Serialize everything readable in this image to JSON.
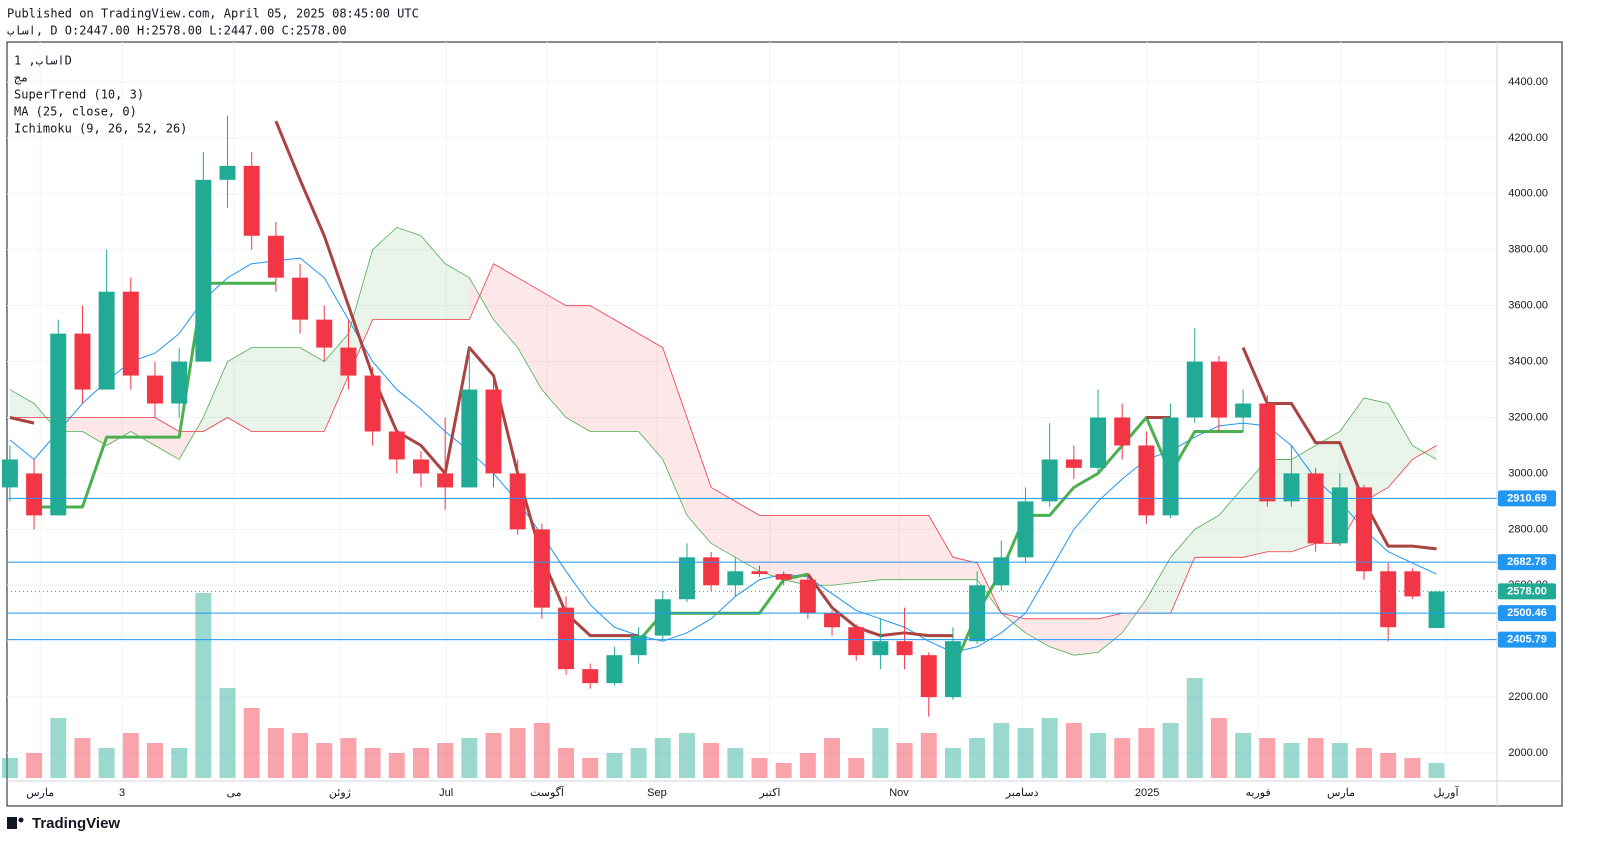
{
  "header": {
    "published": "Published on TradingView.com, April 05, 2025 08:45:00 UTC",
    "ohlc": "اساب, D O:2447.00 H:2578.00 L:2447.00 C:2578.00"
  },
  "legend": {
    "symbol": "اساب, 1D",
    "volume": "مج",
    "supertrend": "SuperTrend (10, 3)",
    "ma": "MA (25, close, 0)",
    "ichimoku": "Ichimoku (9, 26, 52, 26)"
  },
  "footer": {
    "brand": "TradingView"
  },
  "chart_data": {
    "type": "candlestick",
    "up_color": "#22ab94",
    "down_color": "#f23645",
    "open": [
      2950,
      3000,
      2850,
      3500,
      3300,
      3650,
      3350,
      3250,
      3400,
      4050,
      4100,
      3850,
      3700,
      3550,
      3450,
      3350,
      3150,
      3050,
      3000,
      2950,
      3300,
      3000,
      2800,
      2520,
      2300,
      2250,
      2350,
      2420,
      2550,
      2700,
      2600,
      2650,
      2640,
      2620,
      2500,
      2450,
      2350,
      2400,
      2350,
      2200,
      2400,
      2600,
      2700,
      2900,
      3050,
      3020,
      3200,
      3100,
      2850,
      3200,
      3400,
      3200,
      3250,
      2900,
      3000,
      2750,
      2950,
      2650,
      2650,
      2447
    ],
    "high": [
      3100,
      3050,
      3550,
      3600,
      3800,
      3700,
      3400,
      3450,
      4150,
      4280,
      4150,
      3900,
      3750,
      3600,
      3550,
      3380,
      3160,
      3080,
      3200,
      3450,
      3350,
      3050,
      2820,
      2560,
      2320,
      2380,
      2450,
      2580,
      2750,
      2720,
      2700,
      2670,
      2650,
      2640,
      2510,
      2460,
      2480,
      2520,
      2360,
      2450,
      2650,
      2760,
      2950,
      3180,
      3100,
      3300,
      3250,
      3150,
      3250,
      3520,
      3420,
      3300,
      3280,
      3100,
      3020,
      3000,
      2960,
      2680,
      2660,
      2578
    ],
    "low": [
      2900,
      2800,
      2850,
      3250,
      3300,
      3300,
      3200,
      3200,
      3400,
      3950,
      3800,
      3650,
      3500,
      3400,
      3300,
      3100,
      3000,
      2950,
      2870,
      2950,
      2950,
      2780,
      2480,
      2280,
      2230,
      2240,
      2320,
      2400,
      2540,
      2580,
      2560,
      2630,
      2600,
      2480,
      2420,
      2330,
      2300,
      2300,
      2130,
      2190,
      2390,
      2580,
      2680,
      2880,
      2980,
      3000,
      3050,
      2820,
      2840,
      3180,
      3150,
      3150,
      2880,
      2880,
      2720,
      2740,
      2620,
      2400,
      2550,
      2447
    ],
    "close": [
      3050,
      2850,
      3500,
      3300,
      3650,
      3350,
      3250,
      3400,
      4050,
      4100,
      3850,
      3700,
      3550,
      3450,
      3350,
      3150,
      3050,
      3000,
      2950,
      3300,
      3000,
      2800,
      2520,
      2300,
      2250,
      2350,
      2420,
      2550,
      2700,
      2600,
      2650,
      2640,
      2620,
      2500,
      2450,
      2350,
      2400,
      2350,
      2200,
      2400,
      2600,
      2700,
      2900,
      3050,
      3020,
      3200,
      3100,
      2850,
      3200,
      3400,
      3200,
      3250,
      2900,
      3000,
      2750,
      2950,
      2650,
      2450,
      2560,
      2578
    ],
    "volume": [
      20,
      25,
      60,
      40,
      30,
      45,
      35,
      30,
      185,
      90,
      70,
      50,
      45,
      35,
      40,
      30,
      25,
      30,
      35,
      40,
      45,
      50,
      55,
      30,
      20,
      25,
      30,
      40,
      45,
      35,
      30,
      20,
      15,
      25,
      40,
      20,
      50,
      35,
      45,
      30,
      40,
      55,
      50,
      60,
      55,
      45,
      40,
      50,
      55,
      100,
      60,
      45,
      40,
      35,
      40,
      35,
      30,
      25,
      20,
      15
    ],
    "ma": {
      "color": "#2196f3",
      "values": [
        3120,
        3050,
        3150,
        3250,
        3330,
        3400,
        3430,
        3500,
        3620,
        3700,
        3750,
        3760,
        3770,
        3700,
        3550,
        3400,
        3300,
        3230,
        3150,
        3080,
        3000,
        2900,
        2780,
        2650,
        2530,
        2450,
        2420,
        2400,
        2430,
        2480,
        2560,
        2620,
        2640,
        2630,
        2570,
        2510,
        2480,
        2450,
        2400,
        2360,
        2380,
        2430,
        2500,
        2650,
        2800,
        2900,
        2980,
        3050,
        3080,
        3130,
        3170,
        3180,
        3170,
        3100,
        2980,
        2900,
        2800,
        2720,
        2680,
        2640
      ]
    },
    "supertrend": {
      "up_color": "#4caf50",
      "down_color": "#a94442",
      "up": [
        null,
        2880,
        2880,
        2880,
        3130,
        3130,
        3130,
        3130,
        3680,
        3680,
        3680,
        3680,
        null,
        null,
        null,
        null,
        null,
        null,
        null,
        null,
        null,
        null,
        null,
        null,
        null,
        null,
        2400,
        2500,
        2500,
        2500,
        2500,
        2500,
        2620,
        2640,
        null,
        null,
        null,
        null,
        null,
        2300,
        2500,
        2650,
        2850,
        2850,
        2950,
        3000,
        3100,
        3200,
        3000,
        3150,
        3150,
        3150,
        null,
        null,
        null,
        null,
        null,
        null,
        null,
        null
      ],
      "down": [
        3200,
        3180,
        null,
        null,
        null,
        null,
        null,
        null,
        null,
        null,
        null,
        4260,
        4050,
        3850,
        3600,
        3350,
        3150,
        3100,
        3000,
        3450,
        3350,
        3000,
        2700,
        2500,
        2420,
        2420,
        2420,
        null,
        null,
        null,
        null,
        null,
        null,
        2640,
        2520,
        2450,
        2420,
        2430,
        2420,
        2420,
        null,
        null,
        null,
        null,
        null,
        null,
        null,
        3200,
        3200,
        null,
        null,
        3450,
        3250,
        3250,
        3110,
        3110,
        2900,
        2740,
        2740,
        2730
      ]
    },
    "ichimoku": {
      "up_color": "#4caf50",
      "down_color": "#f23645",
      "span_a": [
        3300,
        3250,
        3150,
        3150,
        3100,
        3150,
        3100,
        3050,
        3200,
        3400,
        3450,
        3450,
        3450,
        3400,
        3500,
        3800,
        3880,
        3850,
        3750,
        3700,
        3550,
        3450,
        3300,
        3200,
        3150,
        3150,
        3150,
        3050,
        2850,
        2750,
        2700,
        2650,
        2620,
        2600,
        2600,
        2610,
        2620,
        2620,
        2620,
        2620,
        2620,
        2500,
        2430,
        2380,
        2350,
        2360,
        2430,
        2550,
        2700,
        2800,
        2850,
        2950,
        3050,
        3050,
        3100,
        3150,
        3270,
        3250,
        3100,
        3050
      ],
      "span_b": [
        3200,
        3200,
        3200,
        3200,
        3200,
        3200,
        3200,
        3150,
        3150,
        3200,
        3150,
        3150,
        3150,
        3150,
        3350,
        3550,
        3550,
        3550,
        3550,
        3550,
        3750,
        3700,
        3650,
        3600,
        3600,
        3550,
        3500,
        3450,
        3200,
        2950,
        2900,
        2850,
        2850,
        2850,
        2850,
        2850,
        2850,
        2850,
        2850,
        2700,
        2680,
        2500,
        2480,
        2480,
        2480,
        2480,
        2500,
        2500,
        2500,
        2700,
        2700,
        2700,
        2720,
        2720,
        2750,
        2750,
        2900,
        2950,
        3050,
        3100
      ]
    },
    "levels": [
      {
        "value": 2910.69,
        "label": "2910.69"
      },
      {
        "value": 2682.78,
        "label": "2682.78"
      },
      {
        "value": 2500.46,
        "label": "2500.46"
      },
      {
        "value": 2405.79,
        "label": "2405.79"
      }
    ],
    "last_price": {
      "value": 2578,
      "label": "2578.00"
    },
    "ylim": [
      1900,
      4543
    ],
    "yticks": [
      {
        "value": 2000,
        "label": "2000.00"
      },
      {
        "value": 2200,
        "label": "2200.00"
      },
      {
        "value": 2400,
        "label": "2400.00"
      },
      {
        "value": 2600,
        "label": "2600.00"
      },
      {
        "value": 2800,
        "label": "2800.00"
      },
      {
        "value": 3000,
        "label": "3000.00"
      },
      {
        "value": 3200,
        "label": "3200.00"
      },
      {
        "value": 3400,
        "label": "3400.00"
      },
      {
        "value": 3600,
        "label": "3600.00"
      },
      {
        "value": 3800,
        "label": "3800.00"
      },
      {
        "value": 4000,
        "label": "4000.00"
      },
      {
        "value": 4200,
        "label": "4200.00"
      },
      {
        "value": 4400,
        "label": "4400.00"
      }
    ],
    "xlim": [
      -0.12,
      61.5
    ],
    "xticks": [
      {
        "value": 1.25,
        "label": "مارس"
      },
      {
        "value": 4.64,
        "label": "3"
      },
      {
        "value": 9.27,
        "label": "می"
      },
      {
        "value": 13.65,
        "label": "ژوئن"
      },
      {
        "value": 18.04,
        "label": "Jul"
      },
      {
        "value": 22.21,
        "label": "آگوست"
      },
      {
        "value": 26.76,
        "label": "Sep"
      },
      {
        "value": 31.43,
        "label": "اکتبر"
      },
      {
        "value": 36.77,
        "label": "Nov"
      },
      {
        "value": 41.86,
        "label": "دسامبر"
      },
      {
        "value": 47.03,
        "label": "2025"
      },
      {
        "value": 51.62,
        "label": "فوریه"
      },
      {
        "value": 55.05,
        "label": "مارس"
      },
      {
        "value": 59.39,
        "label": "آوریل"
      }
    ],
    "grid": true
  }
}
